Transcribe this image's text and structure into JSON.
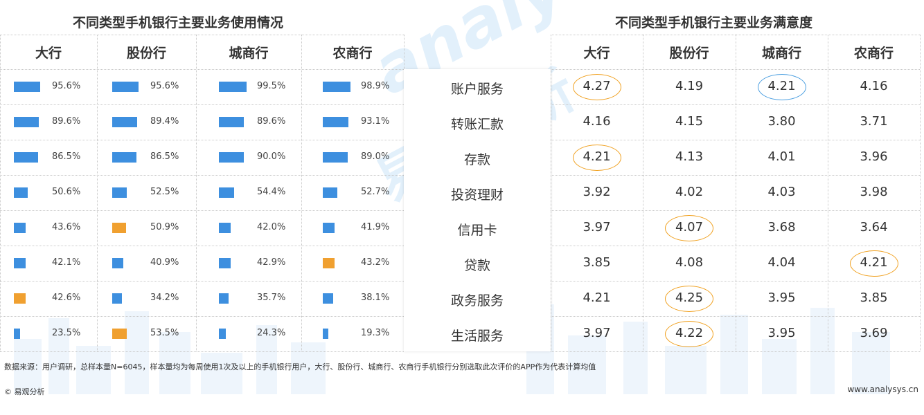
{
  "chart_data": [
    {
      "type": "bar",
      "title": "不同类型手机银行主要业务使用情况",
      "categories": [
        "账户服务",
        "转账汇款",
        "存款",
        "投资理财",
        "信用卡",
        "贷款",
        "政务服务",
        "生活服务"
      ],
      "series": [
        {
          "name": "大行",
          "values": [
            95.6,
            89.6,
            86.5,
            50.6,
            43.6,
            42.1,
            42.6,
            23.5
          ],
          "labels": [
            "95.6%",
            "89.6%",
            "86.5%",
            "50.6%",
            "43.6%",
            "42.1%",
            "42.6%",
            "23.5%"
          ]
        },
        {
          "name": "股份行",
          "values": [
            95.6,
            89.4,
            86.5,
            52.5,
            50.9,
            40.9,
            34.2,
            53.5
          ],
          "labels": [
            "95.6%",
            "89.4%",
            "86.5%",
            "52.5%",
            "50.9%",
            "40.9%",
            "34.2%",
            "53.5%"
          ]
        },
        {
          "name": "城商行",
          "values": [
            99.5,
            89.6,
            90.0,
            54.4,
            42.0,
            42.9,
            35.7,
            24.3
          ],
          "labels": [
            "99.5%",
            "89.6%",
            "90.0%",
            "54.4%",
            "42.0%",
            "42.9%",
            "35.7%",
            "24.3%"
          ]
        },
        {
          "name": "农商行",
          "values": [
            98.9,
            93.1,
            89.0,
            52.7,
            41.9,
            43.2,
            38.1,
            19.3
          ],
          "labels": [
            "98.9%",
            "93.1%",
            "89.0%",
            "52.7%",
            "41.9%",
            "43.2%",
            "38.1%",
            "19.3%"
          ]
        }
      ],
      "highlight": [
        {
          "series": "大行",
          "category": "政务服务"
        },
        {
          "series": "股份行",
          "category": "信用卡"
        },
        {
          "series": "股份行",
          "category": "生活服务"
        },
        {
          "series": "农商行",
          "category": "贷款"
        }
      ],
      "colors": {
        "bar": "#3d8fdf",
        "highlight": "#f0a030"
      }
    },
    {
      "type": "table",
      "title": "不同类型手机银行主要业务满意度",
      "columns": [
        "大行",
        "股份行",
        "城商行",
        "农商行"
      ],
      "rows": [
        "账户服务",
        "转账汇款",
        "存款",
        "投资理财",
        "信用卡",
        "贷款",
        "政务服务",
        "生活服务"
      ],
      "values": [
        [
          "4.27",
          "4.19",
          "4.21",
          "4.16"
        ],
        [
          "4.16",
          "4.15",
          "3.80",
          "3.71"
        ],
        [
          "4.21",
          "4.13",
          "4.01",
          "3.96"
        ],
        [
          "3.92",
          "4.02",
          "4.03",
          "3.98"
        ],
        [
          "3.97",
          "4.07",
          "3.68",
          "3.64"
        ],
        [
          "3.85",
          "4.08",
          "4.04",
          "4.21"
        ],
        [
          "4.21",
          "4.25",
          "3.95",
          "3.85"
        ],
        [
          "3.97",
          "4.22",
          "3.95",
          "3.69"
        ]
      ],
      "circled_orange": [
        [
          0,
          0
        ],
        [
          2,
          0
        ],
        [
          4,
          1
        ],
        [
          5,
          3
        ],
        [
          6,
          1
        ],
        [
          7,
          1
        ]
      ],
      "circled_blue": [
        [
          0,
          2
        ]
      ],
      "colors": {
        "ring_orange": "#f0a01e",
        "ring_blue": "#4a9ee0"
      }
    }
  ],
  "watermark": {
    "latin": "analysys",
    "chinese": "易观分析"
  },
  "footer": {
    "source": "数据来源：用户调研，总样本量N=6045，样本量均为每周使用1次及以上的手机银行用户，大行、股份行、城商行、农商行手机银行分别选取此次评价的APP作为代表计算均值",
    "brand": "© 易观分析",
    "url": "www.analysys.cn"
  }
}
